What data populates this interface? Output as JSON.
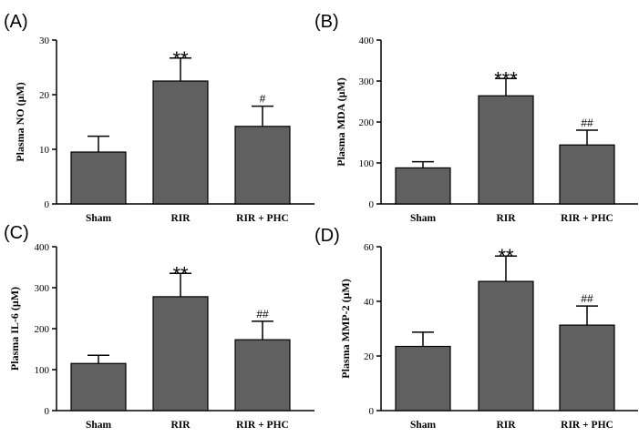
{
  "chart_data": [
    {
      "panel": "(A)",
      "type": "bar",
      "categories": [
        "Sham",
        "RIR",
        "RIR + PHC"
      ],
      "values": [
        9.5,
        22.5,
        14.2
      ],
      "errors": [
        2.9,
        4.2,
        3.7
      ],
      "significance": [
        "",
        "**",
        "#"
      ],
      "ylabel": "Plasma NO (μM)",
      "ylim": [
        0,
        30
      ],
      "yticks": [
        0,
        10,
        20,
        30
      ],
      "bar_color": "#606060"
    },
    {
      "panel": "(B)",
      "type": "bar",
      "categories": [
        "Sham",
        "RIR",
        "RIR + PHC"
      ],
      "values": [
        88,
        264,
        144
      ],
      "errors": [
        15,
        42,
        36
      ],
      "significance": [
        "",
        "***",
        "##"
      ],
      "ylabel": "Plasma MDA (μM)",
      "ylim": [
        0,
        400
      ],
      "yticks": [
        0,
        100,
        200,
        300,
        400
      ],
      "bar_color": "#606060"
    },
    {
      "panel": "(C)",
      "type": "bar",
      "categories": [
        "Sham",
        "RIR",
        "RIR + PHC"
      ],
      "values": [
        115,
        278,
        173
      ],
      "errors": [
        20,
        57,
        45
      ],
      "significance": [
        "",
        "**",
        "##"
      ],
      "ylabel": "Plasma IL-6 (μM)",
      "ylim": [
        0,
        400
      ],
      "yticks": [
        0,
        100,
        200,
        300,
        400
      ],
      "bar_color": "#606060"
    },
    {
      "panel": "(D)",
      "type": "bar",
      "categories": [
        "Sham",
        "RIR",
        "RIR + PHC"
      ],
      "values": [
        23.5,
        47.3,
        31.3
      ],
      "errors": [
        5.2,
        9.3,
        7.0
      ],
      "significance": [
        "",
        "**",
        "##"
      ],
      "ylabel": "Plasma MMP-2 (μM)",
      "ylim": [
        0,
        60
      ],
      "yticks": [
        0,
        20,
        40,
        60
      ],
      "bar_color": "#606060"
    }
  ]
}
